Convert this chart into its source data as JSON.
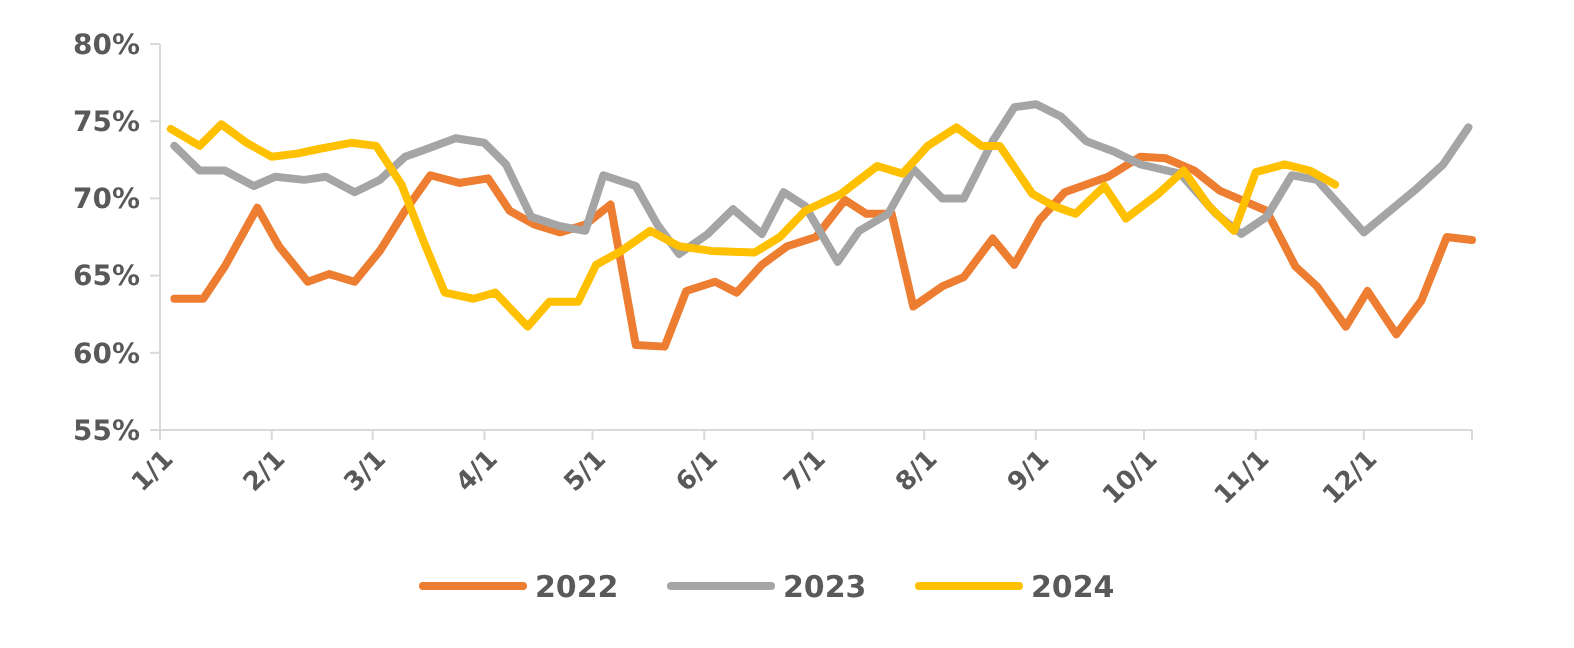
{
  "chart_data": {
    "type": "line",
    "xlim": [
      "--01-01",
      "--12-31"
    ],
    "xticks": [
      {
        "value": "--01-01",
        "label": "1/1"
      },
      {
        "value": "--02-01",
        "label": "2/1"
      },
      {
        "value": "--03-01",
        "label": "3/1"
      },
      {
        "value": "--04-01",
        "label": "4/1"
      },
      {
        "value": "--05-01",
        "label": "5/1"
      },
      {
        "value": "--06-01",
        "label": "6/1"
      },
      {
        "value": "--07-01",
        "label": "7/1"
      },
      {
        "value": "--08-01",
        "label": "8/1"
      },
      {
        "value": "--09-01",
        "label": "9/1"
      },
      {
        "value": "--10-01",
        "label": "10/1"
      },
      {
        "value": "--11-01",
        "label": "11/1"
      },
      {
        "value": "--12-01",
        "label": "12/1"
      }
    ],
    "ylim": [
      55,
      80
    ],
    "yticks": [
      {
        "value": 55,
        "label": "55%"
      },
      {
        "value": 60,
        "label": "60%"
      },
      {
        "value": 65,
        "label": "65%"
      },
      {
        "value": 70,
        "label": "70%"
      },
      {
        "value": 75,
        "label": "75%"
      },
      {
        "value": 80,
        "label": "80%"
      }
    ],
    "grid": false,
    "legend": "bottom",
    "marker": "none",
    "line_style": "solid",
    "series": [
      {
        "name": "2022",
        "color": "#ed7d31",
        "x": [
          "--01-05",
          "--01-13",
          "--01-19",
          "--01-28",
          "--02-03",
          "--02-11",
          "--02-17",
          "--02-24",
          "--03-03",
          "--03-10",
          "--03-17",
          "--03-25",
          "--04-02",
          "--04-08",
          "--04-15",
          "--04-22",
          "--04-29",
          "--05-06",
          "--05-13",
          "--05-21",
          "--05-27",
          "--06-04",
          "--06-10",
          "--06-17",
          "--06-24",
          "--07-02",
          "--07-10",
          "--07-16",
          "--07-23",
          "--07-29",
          "--08-06",
          "--08-12",
          "--08-20",
          "--08-26",
          "--09-02",
          "--09-09",
          "--09-21",
          "--09-30",
          "--10-07",
          "--10-15",
          "--10-22",
          "--11-04",
          "--11-12",
          "--11-18",
          "--11-26",
          "--12-02",
          "--12-10",
          "--12-17",
          "--12-24",
          "--12-31"
        ],
        "values": [
          63.5,
          63.5,
          65.6,
          69.4,
          66.9,
          64.6,
          65.1,
          64.6,
          66.6,
          69.2,
          71.5,
          71.0,
          71.3,
          69.2,
          68.3,
          67.8,
          68.3,
          69.6,
          60.5,
          60.4,
          64.0,
          64.6,
          63.9,
          65.7,
          66.9,
          67.5,
          69.9,
          69.0,
          69.0,
          63.0,
          64.3,
          64.9,
          67.4,
          65.7,
          68.6,
          70.4,
          71.4,
          72.7,
          72.6,
          71.8,
          70.5,
          69.2,
          65.6,
          64.3,
          61.7,
          64.0,
          61.2,
          63.4,
          67.5,
          67.3
        ]
      },
      {
        "name": "2023",
        "color": "#a5a5a5",
        "x": [
          "--01-05",
          "--01-12",
          "--01-19",
          "--01-27",
          "--02-02",
          "--02-10",
          "--02-16",
          "--02-24",
          "--03-03",
          "--03-10",
          "--03-16",
          "--03-24",
          "--04-01",
          "--04-07",
          "--04-14",
          "--04-22",
          "--04-29",
          "--05-04",
          "--05-13",
          "--05-19",
          "--05-25",
          "--06-02",
          "--06-09",
          "--06-17",
          "--06-23",
          "--06-29",
          "--07-08",
          "--07-14",
          "--07-22",
          "--07-29",
          "--08-06",
          "--08-12",
          "--08-20",
          "--08-26",
          "--09-01",
          "--09-08",
          "--09-15",
          "--09-23",
          "--09-30",
          "--10-11",
          "--10-21",
          "--10-28",
          "--11-04",
          "--11-11",
          "--11-18",
          "--12-01",
          "--12-15",
          "--12-23",
          "--12-30"
        ],
        "values": [
          73.4,
          71.8,
          71.8,
          70.8,
          71.4,
          71.2,
          71.4,
          70.4,
          71.2,
          72.7,
          73.2,
          73.9,
          73.6,
          72.2,
          68.8,
          68.2,
          67.9,
          71.5,
          70.8,
          68.3,
          66.4,
          67.7,
          69.3,
          67.7,
          70.4,
          69.5,
          65.9,
          67.9,
          69.0,
          71.9,
          70.0,
          70.0,
          73.7,
          75.9,
          76.1,
          75.3,
          73.7,
          73.0,
          72.2,
          71.6,
          69.0,
          67.7,
          68.8,
          71.5,
          71.2,
          67.8,
          70.5,
          72.2,
          74.6
        ]
      },
      {
        "name": "2024",
        "color": "#ffc000",
        "x": [
          "--01-04",
          "--01-12",
          "--01-18",
          "--01-25",
          "--02-01",
          "--02-08",
          "--02-14",
          "--02-23",
          "--03-02",
          "--03-09",
          "--03-15",
          "--03-21",
          "--03-29",
          "--04-04",
          "--04-13",
          "--04-19",
          "--04-27",
          "--05-02",
          "--05-09",
          "--05-17",
          "--05-25",
          "--06-03",
          "--06-15",
          "--06-22",
          "--06-29",
          "--07-09",
          "--07-19",
          "--07-26",
          "--08-02",
          "--08-10",
          "--08-17",
          "--08-22",
          "--08-31",
          "--09-06",
          "--09-12",
          "--09-20",
          "--09-26",
          "--10-05",
          "--10-12",
          "--10-19",
          "--10-26",
          "--11-01",
          "--11-09",
          "--11-16",
          "--11-23"
        ],
        "values": [
          74.5,
          73.4,
          74.8,
          73.6,
          72.7,
          72.9,
          73.2,
          73.6,
          73.4,
          70.9,
          67.3,
          63.9,
          63.5,
          63.9,
          61.7,
          63.3,
          63.3,
          65.7,
          66.6,
          67.9,
          66.9,
          66.6,
          66.5,
          67.5,
          69.2,
          70.3,
          72.1,
          71.6,
          73.4,
          74.6,
          73.4,
          73.4,
          70.3,
          69.5,
          69.0,
          70.8,
          68.7,
          70.3,
          71.8,
          69.5,
          67.9,
          71.7,
          72.2,
          71.8,
          70.9
        ]
      }
    ]
  }
}
